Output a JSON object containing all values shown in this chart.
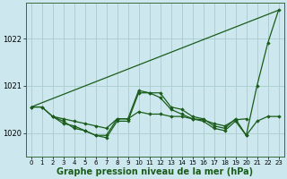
{
  "background_color": "#cce8ee",
  "grid_color": "#aacccc",
  "line_color": "#1a5c1a",
  "marker_color": "#1a5c1a",
  "xlabel": "Graphe pression niveau de la mer (hPa)",
  "xlabel_fontsize": 7,
  "xlim": [
    -0.5,
    23.5
  ],
  "ylim": [
    1019.5,
    1022.75
  ],
  "yticks": [
    1020,
    1021,
    1022
  ],
  "xticks": [
    0,
    1,
    2,
    3,
    4,
    5,
    6,
    7,
    8,
    9,
    10,
    11,
    12,
    13,
    14,
    15,
    16,
    17,
    18,
    19,
    20,
    21,
    22,
    23
  ],
  "series": [
    {
      "x": [
        0,
        23
      ],
      "y": [
        1020.55,
        1022.6
      ],
      "marker": false,
      "linewidth": 0.9
    },
    {
      "x": [
        0,
        1,
        2,
        3,
        4,
        5,
        6,
        7,
        8,
        9,
        10,
        11,
        12,
        13,
        14,
        15,
        16,
        17,
        18,
        19,
        20,
        21,
        22,
        23
      ],
      "y": [
        1020.55,
        1020.55,
        1020.35,
        1020.25,
        1020.1,
        1020.05,
        1019.95,
        1019.95,
        1020.3,
        1020.3,
        1020.9,
        1020.85,
        1020.85,
        1020.55,
        1020.5,
        1020.35,
        1020.3,
        1020.15,
        1020.1,
        1020.3,
        1019.95,
        1021.0,
        1021.9,
        1022.6
      ],
      "marker": true,
      "linewidth": 0.9
    },
    {
      "x": [
        2,
        3,
        4,
        5,
        6,
        7,
        8,
        9,
        10,
        11,
        12,
        13,
        14,
        15,
        16,
        17,
        18,
        19,
        20,
        21,
        22,
        23
      ],
      "y": [
        1020.35,
        1020.2,
        1020.15,
        1020.05,
        1019.95,
        1019.9,
        1020.25,
        1020.25,
        1020.85,
        1020.85,
        1020.75,
        1020.5,
        1020.4,
        1020.3,
        1020.25,
        1020.1,
        1020.05,
        1020.25,
        1019.95,
        1020.25,
        1020.35,
        1020.35
      ],
      "marker": true,
      "linewidth": 0.9
    },
    {
      "x": [
        0,
        1,
        2,
        3,
        4,
        5,
        6,
        7,
        8,
        9,
        10,
        11,
        12,
        13,
        14,
        15,
        16,
        17,
        18,
        19,
        20
      ],
      "y": [
        1020.55,
        1020.55,
        1020.35,
        1020.3,
        1020.25,
        1020.2,
        1020.15,
        1020.1,
        1020.3,
        1020.3,
        1020.45,
        1020.4,
        1020.4,
        1020.35,
        1020.35,
        1020.3,
        1020.28,
        1020.2,
        1020.15,
        1020.28,
        1020.3
      ],
      "marker": true,
      "linewidth": 0.9
    }
  ]
}
